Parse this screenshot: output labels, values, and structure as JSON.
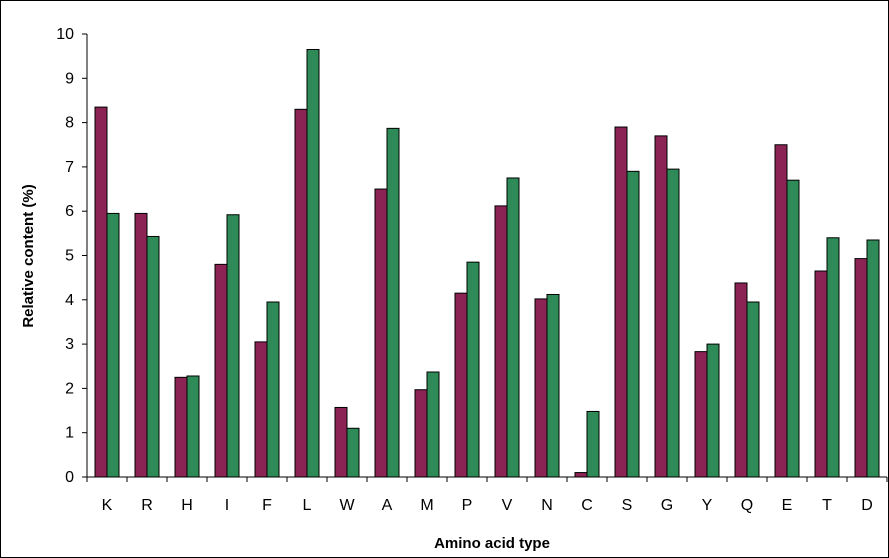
{
  "chart_data": {
    "type": "bar",
    "xlabel": "Amino acid type",
    "ylabel": "Relative content (%)",
    "ylim": [
      0,
      10
    ],
    "yticks": [
      "0",
      "1",
      "2",
      "3",
      "4",
      "5",
      "6",
      "7",
      "8",
      "9",
      "10"
    ],
    "grid": false,
    "legend": "none",
    "categories": [
      "K",
      "R",
      "H",
      "I",
      "F",
      "L",
      "W",
      "A",
      "M",
      "P",
      "V",
      "N",
      "C",
      "S",
      "G",
      "Y",
      "Q",
      "E",
      "T",
      "D"
    ],
    "series": [
      {
        "color": "#8B2355",
        "values": [
          8.35,
          5.95,
          2.25,
          4.8,
          3.05,
          8.3,
          1.57,
          6.5,
          1.97,
          4.15,
          6.12,
          4.02,
          0.1,
          7.9,
          7.7,
          2.83,
          4.38,
          7.5,
          4.65,
          4.93
        ]
      },
      {
        "color": "#2E8B57",
        "values": [
          5.95,
          5.43,
          2.28,
          5.92,
          3.95,
          9.65,
          1.1,
          7.87,
          2.37,
          4.85,
          6.75,
          4.12,
          1.48,
          6.9,
          6.95,
          3.0,
          3.95,
          6.7,
          5.4,
          5.35
        ]
      }
    ]
  }
}
